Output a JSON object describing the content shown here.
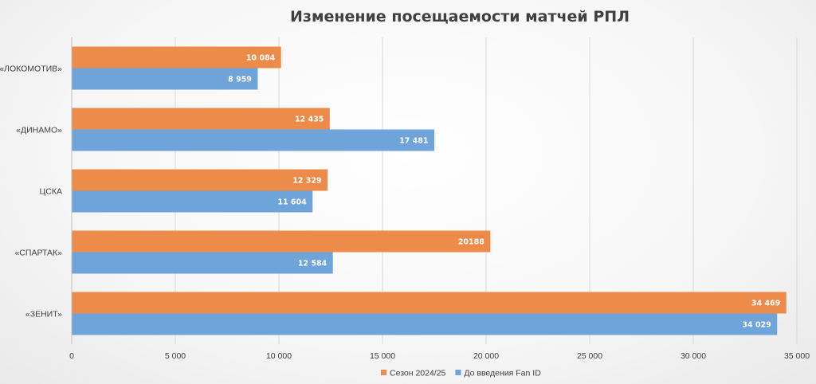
{
  "chart_data": {
    "type": "bar",
    "orientation": "horizontal",
    "title": "Изменение посещаемости матчей РПЛ",
    "xlabel": "",
    "ylabel": "",
    "categories": [
      "«ЛОКОМОТИВ»",
      "«ДИНАМО»",
      "ЦСКА",
      "«СПАРТАК»",
      "«ЗЕНИТ»"
    ],
    "series": [
      {
        "name": "Сезон 2024/25",
        "color": "#ED8B4A",
        "values": [
          10084,
          12435,
          12329,
          20188,
          34469
        ],
        "labels": [
          "10 084",
          "12 435",
          "12 329",
          "20188",
          "34 469"
        ]
      },
      {
        "name": "До введения Fan ID",
        "color": "#6FA4DB",
        "values": [
          8959,
          17481,
          11604,
          12584,
          34029
        ],
        "labels": [
          "8 959",
          "17 481",
          "11 604",
          "12 584",
          "34 029"
        ]
      }
    ],
    "xlim": [
      0,
      35000
    ],
    "xticks": [
      0,
      5000,
      10000,
      15000,
      20000,
      25000,
      30000,
      35000
    ],
    "xtick_labels": [
      "0",
      "5 000",
      "10 000",
      "15 000",
      "20 000",
      "25 000",
      "30 000",
      "35 000"
    ],
    "grid": true,
    "legend_position": "bottom"
  }
}
